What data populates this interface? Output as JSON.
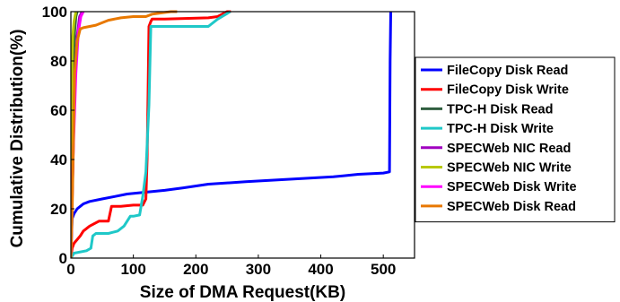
{
  "chart_data": {
    "type": "line",
    "title": "",
    "xlabel": "Size of DMA Request(KB)",
    "ylabel": "Cumulative Distribution(%)",
    "xlim": [
      0,
      550
    ],
    "ylim": [
      0,
      100
    ],
    "xticks": [
      0,
      100,
      200,
      300,
      400,
      500
    ],
    "yticks": [
      0,
      20,
      40,
      60,
      80,
      100
    ],
    "grid": false,
    "legend_position": "right",
    "series": [
      {
        "name": "FileCopy Disk Read",
        "color": "#0000ff",
        "x": [
          0,
          2,
          5,
          10,
          15,
          20,
          30,
          50,
          70,
          90,
          110,
          150,
          180,
          220,
          280,
          350,
          420,
          460,
          500,
          510,
          511,
          512
        ],
        "y": [
          0,
          16,
          18,
          20,
          21,
          22,
          23,
          24,
          25,
          26,
          26.5,
          27.5,
          28.5,
          30,
          31,
          32,
          33,
          34,
          34.5,
          35,
          80,
          100
        ]
      },
      {
        "name": "FileCopy Disk Write",
        "color": "#ff0000",
        "x": [
          0,
          2,
          5,
          15,
          20,
          30,
          45,
          60,
          65,
          80,
          100,
          115,
          120,
          122,
          125,
          128,
          130,
          140,
          150,
          220,
          235,
          250,
          256
        ],
        "y": [
          0,
          4,
          6,
          9,
          11,
          13,
          15,
          15,
          21,
          21,
          21.5,
          21.5,
          24,
          40,
          94,
          96,
          97,
          97,
          97,
          97.5,
          98,
          100,
          100
        ]
      },
      {
        "name": "TPC-H Disk Read",
        "color": "#2f5e3f",
        "x": [
          0,
          1,
          2,
          4,
          6,
          8,
          10
        ],
        "y": [
          0,
          30,
          60,
          80,
          92,
          98,
          100
        ]
      },
      {
        "name": "TPC-H Disk Write",
        "color": "#1fc8c8",
        "x": [
          0,
          5,
          25,
          32,
          35,
          40,
          60,
          75,
          85,
          95,
          100,
          110,
          115,
          120,
          125,
          128,
          130,
          220,
          235,
          255
        ],
        "y": [
          0,
          2,
          3,
          4,
          9,
          10,
          10,
          11,
          13,
          17,
          17,
          17.5,
          25,
          35,
          62,
          94,
          94,
          94,
          97,
          100
        ]
      },
      {
        "name": "SPECWeb NIC Read",
        "color": "#a000c0",
        "x": [
          0,
          3,
          6,
          10,
          14,
          18
        ],
        "y": [
          0,
          35,
          70,
          90,
          98,
          100
        ]
      },
      {
        "name": "SPECWeb NIC Write",
        "color": "#b8c800",
        "x": [
          0,
          1,
          2,
          3,
          5,
          8
        ],
        "y": [
          0,
          60,
          80,
          90,
          96,
          100
        ]
      },
      {
        "name": "SPECWeb Disk Write",
        "color": "#ff00ff",
        "x": [
          0,
          4,
          8,
          12,
          16,
          20
        ],
        "y": [
          0,
          45,
          75,
          92,
          98,
          100
        ]
      },
      {
        "name": "SPECWeb Disk Read",
        "color": "#e87800",
        "x": [
          0,
          2,
          6,
          10,
          15,
          20,
          30,
          40,
          50,
          60,
          80,
          100,
          120,
          130,
          145,
          160,
          170
        ],
        "y": [
          0,
          18,
          75,
          88,
          93,
          93.5,
          94,
          94.5,
          95.5,
          96.5,
          97.5,
          98,
          98,
          99,
          99.5,
          100,
          100
        ]
      }
    ]
  }
}
